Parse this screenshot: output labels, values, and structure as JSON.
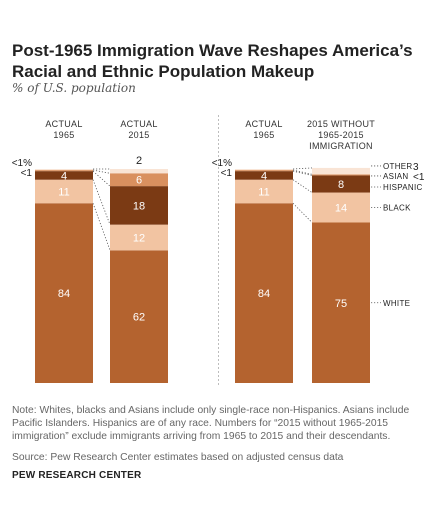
{
  "title": "Post-1965 Immigration Wave Reshapes America’s Racial and Ethnic Population Makeup",
  "subtitle": "% of U.S. population",
  "note": "Note: Whites, blacks and Asians include only single-race non-Hispanics. Asians include Pacific Islanders. Hispanics are of any race. Numbers for “2015 without 1965-2015 immigration” exclude immigrants arriving from 1965 to 2015 and their descendants.",
  "source": "Source: Pew Research Center estimates based on adjusted census data",
  "org": "PEW RESEARCH CENTER",
  "colors": {
    "white": "#B4632F",
    "black": "#F2C4A2",
    "hispanic": "#7B3A14",
    "asian": "#D9905F",
    "other": "#F9E4D5",
    "divider": "#bdbdbd"
  },
  "chart_data": [
    {
      "type": "bar",
      "stacked": true,
      "categories": [
        "ACTUAL 1965",
        "ACTUAL 2015"
      ],
      "series": [
        {
          "name": "WHITE",
          "values": [
            84,
            62
          ],
          "labels": [
            "84",
            "62"
          ]
        },
        {
          "name": "BLACK",
          "values": [
            11,
            12
          ],
          "labels": [
            "11",
            "12"
          ]
        },
        {
          "name": "HISPANIC",
          "values": [
            4,
            18
          ],
          "labels": [
            "4",
            "18"
          ]
        },
        {
          "name": "ASIAN",
          "values": [
            0.5,
            6
          ],
          "labels": [
            "<1",
            "6"
          ]
        },
        {
          "name": "OTHER",
          "values": [
            0.5,
            2
          ],
          "labels": [
            "<1%",
            "2"
          ]
        }
      ]
    },
    {
      "type": "bar",
      "stacked": true,
      "categories": [
        "ACTUAL 1965",
        "2015 WITHOUT 1965-2015 IMMIGRATION"
      ],
      "series": [
        {
          "name": "WHITE",
          "values": [
            84,
            75
          ],
          "labels": [
            "84",
            "75"
          ]
        },
        {
          "name": "BLACK",
          "values": [
            11,
            14
          ],
          "labels": [
            "11",
            "14"
          ]
        },
        {
          "name": "HISPANIC",
          "values": [
            4,
            8
          ],
          "labels": [
            "4",
            "8"
          ]
        },
        {
          "name": "ASIAN",
          "values": [
            0.5,
            0.5
          ],
          "labels": [
            "<1",
            "<1"
          ]
        },
        {
          "name": "OTHER",
          "values": [
            0.5,
            3
          ],
          "labels": [
            "<1%",
            "3"
          ]
        }
      ]
    }
  ]
}
